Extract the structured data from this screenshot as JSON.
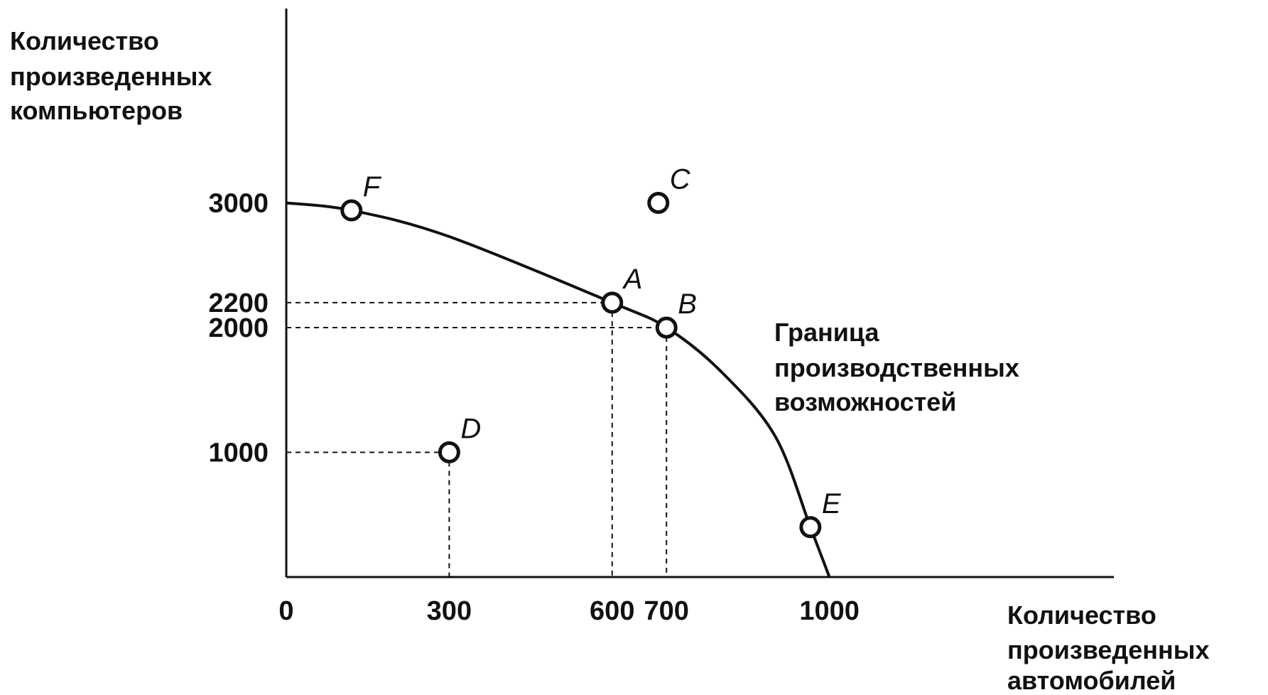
{
  "chart_data": {
    "type": "line",
    "ylabel_lines": [
      "Количество",
      "произведенных",
      "компьютеров"
    ],
    "xlabel_lines": [
      "Количество",
      "произведенных",
      "автомобилей"
    ],
    "x_ticks": [
      "0",
      "300",
      "600",
      "700",
      "1000"
    ],
    "x_tick_values": [
      0,
      300,
      600,
      700,
      1000
    ],
    "y_ticks": [
      "3000",
      "2200",
      "2000",
      "1000"
    ],
    "y_tick_values": [
      3000,
      2200,
      2000,
      1000
    ],
    "xlim": [
      0,
      1500
    ],
    "ylim": [
      0,
      4500
    ],
    "series": [
      {
        "name": "Граница производственных возможностей",
        "curve": [
          [
            0,
            3000
          ],
          [
            120,
            2940
          ],
          [
            300,
            2730
          ],
          [
            600,
            2200
          ],
          [
            700,
            2000
          ],
          [
            800,
            1650
          ],
          [
            900,
            1130
          ],
          [
            965,
            400
          ],
          [
            1000,
            0
          ]
        ]
      }
    ],
    "frontier_label_lines": [
      "Граница",
      "производственных",
      "возможностей"
    ],
    "points": [
      {
        "label": "F",
        "x": 120,
        "y": 2940
      },
      {
        "label": "A",
        "x": 600,
        "y": 2200
      },
      {
        "label": "B",
        "x": 700,
        "y": 2000
      },
      {
        "label": "C",
        "x": 685,
        "y": 3000
      },
      {
        "label": "D",
        "x": 300,
        "y": 1000
      },
      {
        "label": "E",
        "x": 965,
        "y": 400
      }
    ],
    "guides": [
      {
        "x": 600,
        "y": 2200
      },
      {
        "x": 700,
        "y": 2000
      },
      {
        "x": 300,
        "y": 1000
      }
    ],
    "grid": false,
    "legend": "none"
  }
}
